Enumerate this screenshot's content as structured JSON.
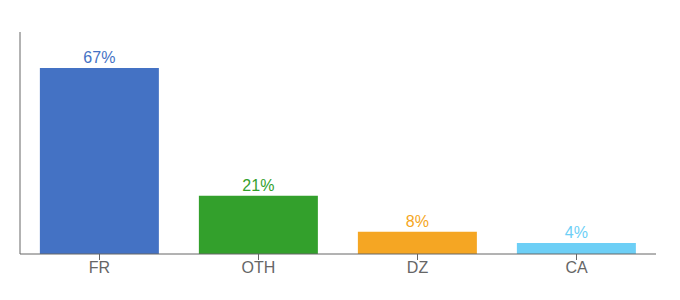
{
  "chart_data": {
    "type": "bar",
    "categories": [
      "FR",
      "OTH",
      "DZ",
      "CA"
    ],
    "values": [
      67,
      21,
      8,
      4
    ],
    "value_labels": [
      "67%",
      "21%",
      "8%",
      "4%"
    ],
    "colors": [
      "#4472c4",
      "#33a02c",
      "#f5a623",
      "#6dcff6"
    ],
    "ylim": [
      0,
      80
    ],
    "data_labels": true,
    "tick_labels": "x",
    "grid": false
  }
}
